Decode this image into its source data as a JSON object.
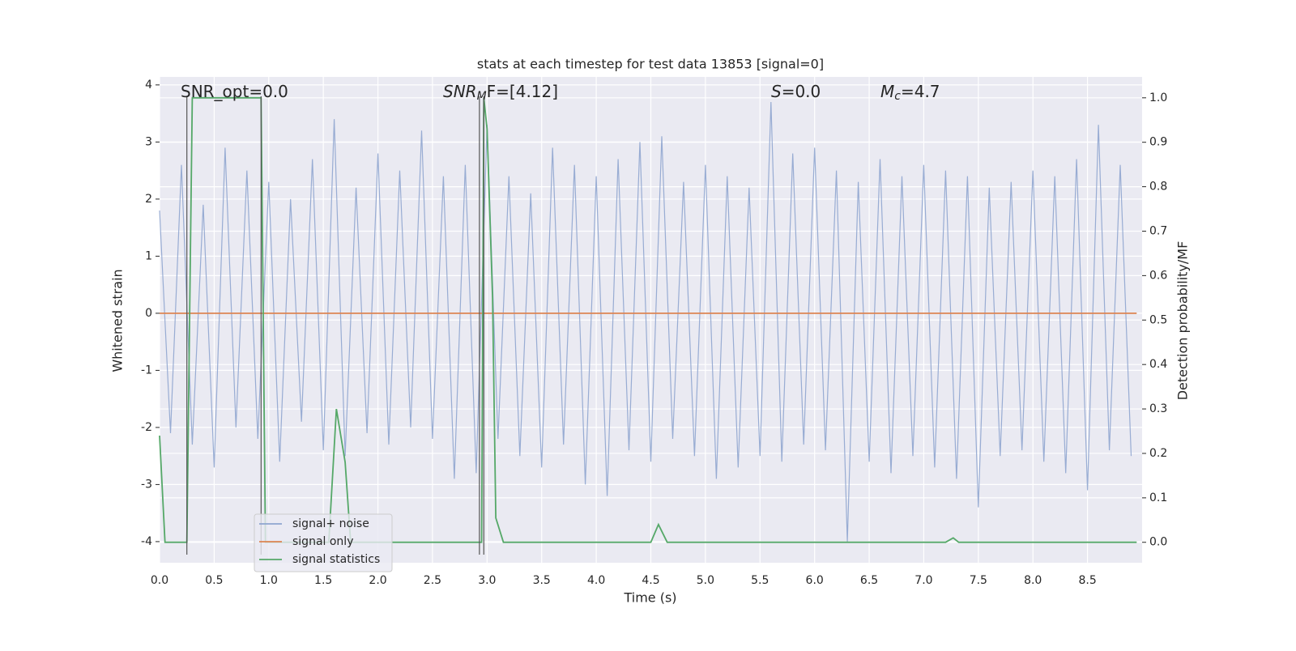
{
  "chart_data": {
    "type": "line",
    "title": "stats at each timestep for test data 13853 [signal=0]",
    "x_label": "Time (s)",
    "y_label": "Whitened strain",
    "y2_label": "Detection probability/MF",
    "annotations": [
      {
        "base": "SNR_opt=0.0"
      },
      {
        "base": "SNR",
        "sub": "M",
        "rest": "F=[4.12]"
      },
      {
        "base": "S",
        "rest": "=0.0"
      },
      {
        "base": "M",
        "sub": "c",
        "rest": "=4.7"
      }
    ],
    "xlim": [
      0,
      9.0
    ],
    "ylim": [
      -4.37,
      4.14
    ],
    "y2lim": [
      -0.046,
      1.047
    ],
    "xticks": [
      {
        "value": 0,
        "label": "0.0"
      },
      {
        "value": 0.5,
        "label": "0.5"
      },
      {
        "value": 1,
        "label": "1.0"
      },
      {
        "value": 1.5,
        "label": "1.5"
      },
      {
        "value": 2,
        "label": "2.0"
      },
      {
        "value": 2.5,
        "label": "2.5"
      },
      {
        "value": 3,
        "label": "3.0"
      },
      {
        "value": 3.5,
        "label": "3.5"
      },
      {
        "value": 4,
        "label": "4.0"
      },
      {
        "value": 4.5,
        "label": "4.5"
      },
      {
        "value": 5,
        "label": "5.0"
      },
      {
        "value": 5.5,
        "label": "5.5"
      },
      {
        "value": 6,
        "label": "6.0"
      },
      {
        "value": 6.5,
        "label": "6.5"
      },
      {
        "value": 7,
        "label": "7.0"
      },
      {
        "value": 7.5,
        "label": "7.5"
      },
      {
        "value": 8,
        "label": "8.0"
      },
      {
        "value": 8.5,
        "label": "8.5"
      }
    ],
    "yticks": [
      -4,
      -3,
      -2,
      -1,
      0,
      1,
      2,
      3,
      4
    ],
    "y2ticks": [
      {
        "value": 0,
        "label": "0.0"
      },
      {
        "value": 0.1,
        "label": "0.1"
      },
      {
        "value": 0.2,
        "label": "0.2"
      },
      {
        "value": 0.3,
        "label": "0.3"
      },
      {
        "value": 0.4,
        "label": "0.4"
      },
      {
        "value": 0.5,
        "label": "0.5"
      },
      {
        "value": 0.6,
        "label": "0.6"
      },
      {
        "value": 0.7,
        "label": "0.7"
      },
      {
        "value": 0.8,
        "label": "0.8"
      },
      {
        "value": 0.9,
        "label": "0.9"
      },
      {
        "value": 1,
        "label": "1.0"
      }
    ],
    "grid": true,
    "legend": "lower left",
    "vlines": {
      "color": "#555555",
      "x": [
        0.25,
        0.93,
        2.93,
        2.97
      ]
    },
    "series": [
      {
        "name": "signal+ noise",
        "color": "#8fa5cf",
        "x": [
          0,
          0.1,
          0.2,
          0.3,
          0.4,
          0.5,
          0.6,
          0.7,
          0.8,
          0.9,
          1,
          1.1,
          1.2,
          1.3,
          1.4,
          1.5,
          1.6,
          1.7,
          1.8,
          1.9,
          2,
          2.1,
          2.2,
          2.3,
          2.4,
          2.5,
          2.6,
          2.7,
          2.8,
          2.9,
          3,
          3.1,
          3.2,
          3.3,
          3.4,
          3.5,
          3.6,
          3.7,
          3.8,
          3.9,
          4,
          4.1,
          4.2,
          4.3,
          4.4,
          4.5,
          4.6,
          4.7,
          4.8,
          4.9,
          5,
          5.1,
          5.2,
          5.3,
          5.4,
          5.5,
          5.6,
          5.7,
          5.8,
          5.9,
          6,
          6.1,
          6.2,
          6.3,
          6.4,
          6.5,
          6.6,
          6.7,
          6.8,
          6.9,
          7,
          7.1,
          7.2,
          7.3,
          7.4,
          7.5,
          7.6,
          7.7,
          7.8,
          7.9,
          8,
          8.1,
          8.2,
          8.3,
          8.4,
          8.5,
          8.6,
          8.7,
          8.8,
          8.9
        ],
        "values": [
          1.8,
          -2.1,
          2.6,
          -2.3,
          1.9,
          -2.7,
          2.9,
          -2.0,
          2.5,
          -2.2,
          2.3,
          -2.6,
          2.0,
          -1.9,
          2.7,
          -2.4,
          3.4,
          -2.5,
          2.2,
          -2.1,
          2.8,
          -2.3,
          2.5,
          -2.0,
          3.2,
          -2.2,
          2.4,
          -2.9,
          2.6,
          -2.8,
          3.3,
          -2.2,
          2.4,
          -2.5,
          2.1,
          -2.7,
          2.9,
          -2.3,
          2.6,
          -3.0,
          2.4,
          -3.2,
          2.7,
          -2.4,
          3.0,
          -2.6,
          3.1,
          -2.2,
          2.3,
          -2.5,
          2.6,
          -2.9,
          2.4,
          -2.7,
          2.2,
          -2.5,
          3.7,
          -2.6,
          2.8,
          -2.3,
          2.9,
          -2.4,
          2.5,
          -4.0,
          2.3,
          -2.6,
          2.7,
          -2.8,
          2.4,
          -2.5,
          2.6,
          -2.7,
          2.5,
          -2.9,
          2.4,
          -3.4,
          2.2,
          -2.5,
          2.3,
          -2.4,
          2.5,
          -2.6,
          2.4,
          -2.8,
          2.7,
          -3.1,
          3.3,
          -2.4,
          2.6,
          -2.5
        ]
      },
      {
        "name": "signal only",
        "color": "#dd8452",
        "x": [
          0,
          8.95
        ],
        "values": [
          0,
          0
        ]
      },
      {
        "name": "signal statistics",
        "color": "#55a868",
        "axis": "y2",
        "x": [
          0,
          0.05,
          0.25,
          0.3,
          0.93,
          0.97,
          1.55,
          1.62,
          1.7,
          1.75,
          2.9,
          2.95,
          2.97,
          3.0,
          3.05,
          3.08,
          3.15,
          4.5,
          4.57,
          4.65,
          7.2,
          7.27,
          7.32,
          8.95
        ],
        "values": [
          0.24,
          0.0,
          0.0,
          1.0,
          1.0,
          0.0,
          0.0,
          0.3,
          0.18,
          0.0,
          0.0,
          0.0,
          1.0,
          0.93,
          0.55,
          0.055,
          0.0,
          0.0,
          0.04,
          0.0,
          0.0,
          0.01,
          0.0,
          0.0
        ]
      }
    ]
  }
}
